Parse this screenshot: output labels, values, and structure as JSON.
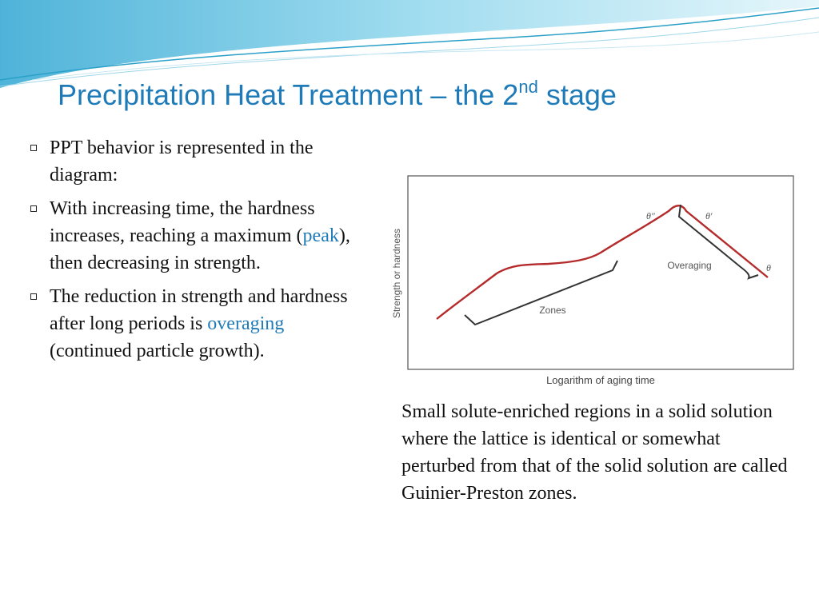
{
  "slide": {
    "title_main": "Precipitation Heat Treatment – the 2",
    "title_sup": "nd",
    "title_tail": " stage"
  },
  "bullets": [
    {
      "text": "PPT behavior is represented in the diagram:"
    },
    {
      "pre": "With increasing time, the hardness increases, reaching a maximum (",
      "highlight": "peak",
      "post": "), then decreasing in strength."
    },
    {
      "pre": "The reduction in strength and hardness after long periods is ",
      "highlight": "overaging",
      "post": " (continued particle growth)."
    }
  ],
  "figure": {
    "ylabel": "Strength or hardness",
    "xlabel": "Logarithm of aging time",
    "labels": {
      "zones": "Zones",
      "overaging": "Overaging",
      "theta_dd": "θ″",
      "theta_d": "θ′",
      "theta": "θ"
    },
    "colors": {
      "curve": "#b52a2a",
      "bracket": "#333333"
    }
  },
  "caption": "Small solute-enriched regions in a solid solution where the lattice is identical or somewhat perturbed from that of the solid solution are called Guinier-Preston zones.",
  "colors": {
    "accent": "#1f7bb8"
  }
}
